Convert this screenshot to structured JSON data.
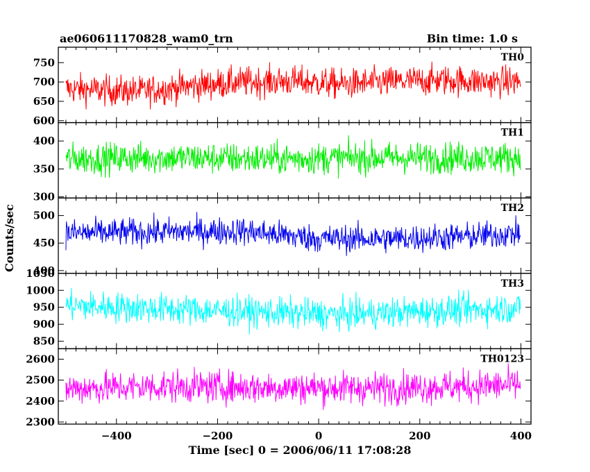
{
  "header": {
    "title": "ae060611170828_wam0_trn",
    "bin_time": "Bin time: 1.0 s"
  },
  "chart_data": {
    "type": "line",
    "title": "ae060611170828_wam0_trn",
    "subtitle": "Bin time: 1.0 s",
    "xlabel": "Time [sec] 0 = 2006/06/11 17:08:28",
    "ylabel": "Counts/sec",
    "xlim": [
      -515,
      420
    ],
    "x_ticks": [
      -400,
      -200,
      0,
      200,
      400
    ],
    "x_range_data": [
      -500,
      399
    ],
    "bin_time_s": 1.0,
    "panels": [
      {
        "name": "TH0",
        "color": "#ff0000",
        "ylim": [
          595,
          790
        ],
        "y_ticks": [
          600,
          650,
          700,
          750
        ],
        "mean_profile": [
          [
            -500,
            683
          ],
          [
            -420,
            678
          ],
          [
            -350,
            676
          ],
          [
            -250,
            690
          ],
          [
            -150,
            700
          ],
          [
            -50,
            702
          ],
          [
            50,
            694
          ],
          [
            150,
            701
          ],
          [
            250,
            705
          ],
          [
            350,
            700
          ],
          [
            399,
            702
          ]
        ],
        "spread": 28
      },
      {
        "name": "TH1",
        "color": "#00ee00",
        "ylim": [
          298,
          433
        ],
        "y_ticks": [
          300,
          350,
          400
        ],
        "mean_profile": [
          [
            -500,
            368
          ],
          [
            -300,
            370
          ],
          [
            -100,
            368
          ],
          [
            100,
            370
          ],
          [
            300,
            370
          ],
          [
            399,
            370
          ]
        ],
        "spread": 20
      },
      {
        "name": "TH2",
        "color": "#0000ee",
        "ylim": [
          395,
          532
        ],
        "y_ticks": [
          400,
          450,
          500
        ],
        "mean_profile": [
          [
            -500,
            468
          ],
          [
            -350,
            470
          ],
          [
            -150,
            472
          ],
          [
            0,
            458
          ],
          [
            150,
            458
          ],
          [
            300,
            462
          ],
          [
            399,
            468
          ]
        ],
        "spread": 18
      },
      {
        "name": "TH3",
        "color": "#00ffff",
        "ylim": [
          828,
          1050
        ],
        "y_ticks": [
          850,
          900,
          950,
          1000,
          1050
        ],
        "mean_profile": [
          [
            -500,
            955
          ],
          [
            -300,
            945
          ],
          [
            -100,
            935
          ],
          [
            50,
            928
          ],
          [
            200,
            938
          ],
          [
            399,
            948
          ]
        ],
        "spread": 32
      },
      {
        "name": "TH0123",
        "color": "#ff00ff",
        "ylim": [
          2290,
          2650
        ],
        "y_ticks": [
          2300,
          2400,
          2500,
          2600
        ],
        "mean_profile": [
          [
            -500,
            2460
          ],
          [
            -300,
            2470
          ],
          [
            -100,
            2465
          ],
          [
            100,
            2462
          ],
          [
            300,
            2470
          ],
          [
            399,
            2478
          ]
        ],
        "spread": 55
      }
    ]
  }
}
